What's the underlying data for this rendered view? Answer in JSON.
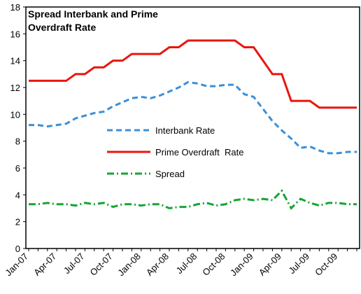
{
  "chart_data": {
    "type": "line",
    "title": "Spread Interbank and Prime Overdraft Rate",
    "categories": [
      "Jan-07",
      null,
      null,
      "Apr-07",
      null,
      null,
      "Jul-07",
      null,
      null,
      "Oct-07",
      null,
      null,
      "Jan-08",
      null,
      null,
      "Apr-08",
      null,
      null,
      "Jul-08",
      null,
      null,
      "Oct-08",
      null,
      null,
      "Jan-09",
      null,
      null,
      "Apr-09",
      null,
      null,
      "Jul-09",
      null,
      null,
      "Oct-09",
      null,
      null
    ],
    "series": [
      {
        "name": "Interbank Rate",
        "color": "#3a8fd8",
        "dash": "8,5",
        "values": [
          9.2,
          9.2,
          9.1,
          9.2,
          9.3,
          9.7,
          9.9,
          10.1,
          10.2,
          10.6,
          10.9,
          11.2,
          11.3,
          11.2,
          11.4,
          11.7,
          12.0,
          12.4,
          12.3,
          12.1,
          12.1,
          12.2,
          12.2,
          11.5,
          11.3,
          10.4,
          9.5,
          8.8,
          8.2,
          7.5,
          7.6,
          7.3,
          7.1,
          7.1,
          7.2,
          7.2
        ]
      },
      {
        "name": "Prime Overdraft  Rate",
        "color": "#e8160e",
        "dash": "",
        "values": [
          12.5,
          12.5,
          12.5,
          12.5,
          12.5,
          13,
          13,
          13.5,
          13.5,
          14,
          14,
          14.5,
          14.5,
          14.5,
          14.5,
          15,
          15,
          15.5,
          15.5,
          15.5,
          15.5,
          15.5,
          15.5,
          15,
          15,
          14,
          13,
          13,
          11,
          11,
          11,
          10.5,
          10.5,
          10.5,
          10.5,
          10.5
        ]
      },
      {
        "name": "Spread",
        "color": "#14a632",
        "dash": "10,4,2,4",
        "values": [
          3.3,
          3.3,
          3.4,
          3.3,
          3.3,
          3.2,
          3.4,
          3.3,
          3.4,
          3.1,
          3.3,
          3.3,
          3.2,
          3.3,
          3.3,
          3.0,
          3.1,
          3.1,
          3.3,
          3.4,
          3.2,
          3.3,
          3.6,
          3.7,
          3.6,
          3.7,
          3.6,
          4.3,
          3.0,
          3.7,
          3.4,
          3.2,
          3.4,
          3.4,
          3.3,
          3.3
        ]
      }
    ],
    "ylim": [
      0,
      18
    ],
    "yticks": [
      0,
      2,
      4,
      6,
      8,
      10,
      12,
      14,
      16,
      18
    ]
  }
}
